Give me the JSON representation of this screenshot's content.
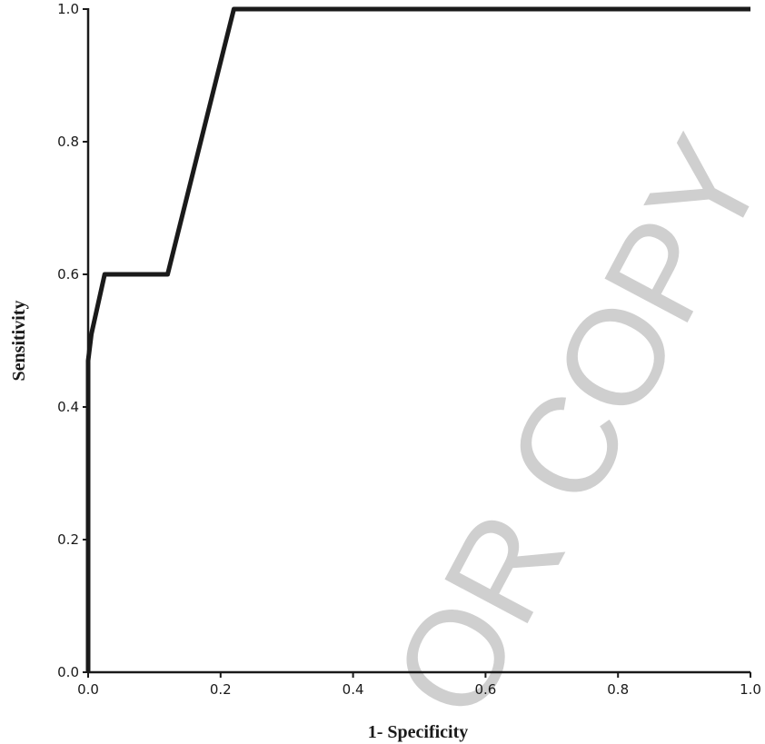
{
  "chart_data": {
    "type": "line",
    "xlabel": "1- Specificity",
    "ylabel": "Sensitivity",
    "xlim": [
      0.0,
      1.0
    ],
    "ylim": [
      0.0,
      1.0
    ],
    "x_ticks": [
      "0.0",
      "0.2",
      "0.4",
      "0.6",
      "0.8",
      "1.0"
    ],
    "y_ticks": [
      "0.0",
      "0.2",
      "0.4",
      "0.6",
      "0.8",
      "1.0"
    ],
    "grid": false,
    "watermark": "OR COPY",
    "series": [
      {
        "x": [
          0.0,
          0.0,
          0.005,
          0.025,
          0.12,
          0.17,
          0.205,
          0.22,
          1.0
        ],
        "y": [
          0.0,
          0.47,
          0.51,
          0.6,
          0.6,
          0.8,
          0.94,
          1.0,
          1.0
        ]
      }
    ]
  }
}
